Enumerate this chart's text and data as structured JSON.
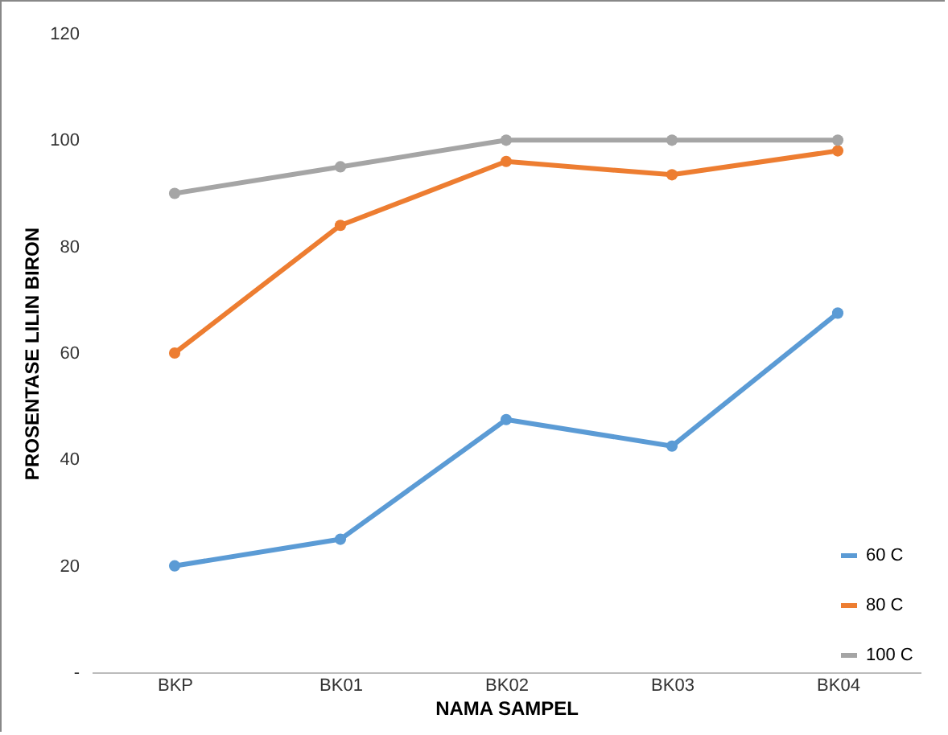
{
  "chart_data": {
    "type": "line",
    "xlabel": "NAMA SAMPEL",
    "ylabel": "PROSENTASE LILIN BIRON",
    "categories": [
      "BKP",
      "BK01",
      "BK02",
      "BK03",
      "BK04"
    ],
    "series": [
      {
        "name": "60 C",
        "color": "#5b9bd5",
        "values": [
          20,
          25,
          47.5,
          42.5,
          67.5
        ]
      },
      {
        "name": "80 C",
        "color": "#ed7d31",
        "values": [
          60,
          84,
          96,
          93.5,
          98
        ]
      },
      {
        "name": "100 C",
        "color": "#a5a5a5",
        "values": [
          90,
          95,
          100,
          100,
          100
        ]
      }
    ],
    "ylim": [
      0,
      120
    ],
    "yticks": [
      {
        "value": 0,
        "label": "-"
      },
      20,
      40,
      60,
      80,
      100,
      120
    ],
    "grid": false,
    "legend": "bottom right",
    "marker": "circle",
    "line_style": "solid"
  }
}
